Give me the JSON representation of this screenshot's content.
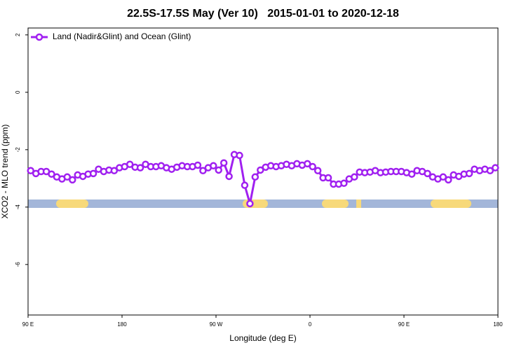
{
  "chart_data": {
    "type": "line",
    "title": "22.5S-17.5S May (Ver 10)   2015-01-01 to 2020-12-18",
    "x_label": "Longitude (deg E)",
    "y_label": "XCO2 - MLO trend (ppm)",
    "xlim": [
      90,
      540
    ],
    "ylim": [
      -7.76,
      2.24
    ],
    "xticks": [
      {
        "value": 90,
        "label": "90 E"
      },
      180,
      {
        "value": 270,
        "label": "90 W"
      },
      {
        "value": 360,
        "label": "0"
      },
      {
        "value": 450,
        "label": "90 E"
      },
      {
        "value": 540,
        "label": "180"
      }
    ],
    "yticks": [
      2,
      0,
      -2,
      -4,
      -6
    ],
    "legend": "top-left",
    "x": [
      92.5,
      97.5,
      102.5,
      107.5,
      112.5,
      117.5,
      122.5,
      127.5,
      132.5,
      137.5,
      142.5,
      147.5,
      152.5,
      157.5,
      162.5,
      167.5,
      172.5,
      177.5,
      182.5,
      187.5,
      192.5,
      197.5,
      202.5,
      207.5,
      212.5,
      217.5,
      222.5,
      227.5,
      232.5,
      237.5,
      242.5,
      247.5,
      252.5,
      257.5,
      262.5,
      267.5,
      272.5,
      277.5,
      282.5,
      287.5,
      292.5,
      297.5,
      302.5,
      307.5,
      312.5,
      317.5,
      322.5,
      327.5,
      332.5,
      337.5,
      342.5,
      347.5,
      352.5,
      357.5,
      362.5,
      367.5,
      372.5,
      377.5,
      382.5,
      387.5,
      392.5,
      397.5,
      402.5,
      407.5,
      412.5,
      417.5,
      422.5,
      427.5,
      432.5,
      437.5,
      442.5,
      447.5,
      452.5,
      457.5,
      462.5,
      467.5,
      472.5,
      477.5,
      482.5,
      487.5,
      492.5,
      497.5,
      502.5,
      507.5,
      512.5,
      517.5,
      522.5,
      527.5,
      532.5,
      537.5
    ],
    "series": [
      {
        "name": "Land (Nadir&Glint) and Ocean (Glint)",
        "color": "#a020f0",
        "values": [
          -2.73,
          -2.83,
          -2.76,
          -2.76,
          -2.85,
          -2.95,
          -3.02,
          -2.95,
          -3.05,
          -2.88,
          -2.93,
          -2.85,
          -2.83,
          -2.68,
          -2.76,
          -2.71,
          -2.73,
          -2.63,
          -2.59,
          -2.51,
          -2.61,
          -2.63,
          -2.51,
          -2.59,
          -2.59,
          -2.56,
          -2.63,
          -2.68,
          -2.61,
          -2.56,
          -2.59,
          -2.59,
          -2.54,
          -2.73,
          -2.63,
          -2.56,
          -2.71,
          -2.46,
          -2.93,
          -2.17,
          -2.2,
          -3.24,
          -3.88,
          -2.95,
          -2.71,
          -2.61,
          -2.56,
          -2.59,
          -2.56,
          -2.51,
          -2.56,
          -2.49,
          -2.54,
          -2.49,
          -2.59,
          -2.73,
          -2.98,
          -2.98,
          -3.2,
          -3.2,
          -3.17,
          -3.02,
          -2.95,
          -2.78,
          -2.8,
          -2.78,
          -2.73,
          -2.8,
          -2.78,
          -2.76,
          -2.76,
          -2.76,
          -2.8,
          -2.85,
          -2.73,
          -2.76,
          -2.83,
          -2.95,
          -3.02,
          -2.95,
          -3.05,
          -2.88,
          -2.93,
          -2.85,
          -2.83,
          -2.68,
          -2.73,
          -2.68,
          -2.73,
          -2.63
        ]
      }
    ]
  }
}
